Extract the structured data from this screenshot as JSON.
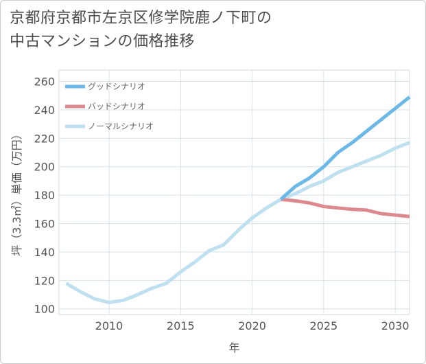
{
  "title_line1": "京都府京都市左京区修学院鹿ノ下町の",
  "title_line2": "中古マンションの価格推移",
  "chart_data": {
    "type": "line",
    "xlabel": "年",
    "ylabel": "坪（3.3㎡）単価（万円）",
    "xlim": [
      2006.5,
      2031
    ],
    "ylim": [
      96,
      268
    ],
    "xticks": [
      2010,
      2015,
      2020,
      2025,
      2030
    ],
    "yticks": [
      100,
      120,
      140,
      160,
      180,
      200,
      220,
      240,
      260
    ],
    "grid": true,
    "legend_position": "top-left",
    "series": [
      {
        "name": "グッドシナリオ",
        "color": "#6cb9e8",
        "x": [
          2022,
          2023,
          2024,
          2025,
          2026,
          2027,
          2028,
          2029,
          2030,
          2031
        ],
        "y": [
          177,
          186,
          192,
          200,
          210,
          217,
          225,
          233,
          241,
          249
        ]
      },
      {
        "name": "バッドシナリオ",
        "color": "#dc8a8f",
        "x": [
          2022,
          2023,
          2024,
          2025,
          2026,
          2027,
          2028,
          2029,
          2030,
          2031
        ],
        "y": [
          177,
          176,
          174.5,
          172,
          171,
          170,
          169.5,
          167,
          166,
          165
        ]
      },
      {
        "name": "ノーマルシナリオ",
        "color": "#bfe0ef",
        "x": [
          2007,
          2008,
          2009,
          2010,
          2011,
          2012,
          2013,
          2014,
          2015,
          2016,
          2017,
          2018,
          2019,
          2020,
          2021,
          2022,
          2023,
          2024,
          2025,
          2026,
          2027,
          2028,
          2029,
          2030,
          2031
        ],
        "y": [
          118,
          112,
          107,
          104.5,
          106,
          110,
          114.5,
          118,
          126,
          133,
          141,
          145,
          155,
          164,
          171,
          177,
          181,
          186,
          190,
          196,
          200,
          204,
          208,
          213,
          217
        ]
      }
    ]
  }
}
